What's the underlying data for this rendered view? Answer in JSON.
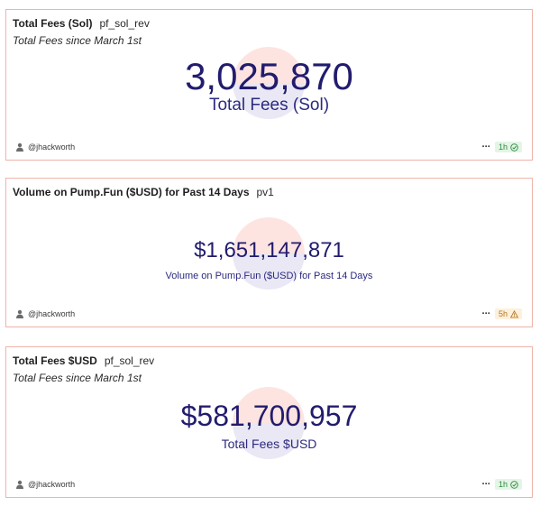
{
  "cards": [
    {
      "title": "Total Fees (Sol)",
      "query": "pf_sol_rev",
      "subtitle": "Total Fees since March 1st",
      "value": "3,025,870",
      "label": "Total Fees (Sol)",
      "author": "@jhackworth",
      "more": "···",
      "refresh": "1h",
      "status": "success"
    },
    {
      "title": "Volume on Pump.Fun ($USD) for Past 14 Days",
      "query": "pv1",
      "subtitle": "",
      "value": "$1,651,147,871",
      "label": "Volume on Pump.Fun ($USD) for Past 14 Days",
      "author": "@jhackworth",
      "more": "···",
      "refresh": "5h",
      "status": "warning"
    },
    {
      "title": "Total Fees $USD",
      "query": "pf_sol_rev",
      "subtitle": "Total Fees since March 1st",
      "value": "$581,700,957",
      "label": "Total Fees $USD",
      "author": "@jhackworth",
      "more": "···",
      "refresh": "1h",
      "status": "success"
    }
  ],
  "colors": {
    "border": "#f0b3a7",
    "value_text": "#221c6e",
    "success": "#2f8a3e",
    "warning": "#b7791f"
  },
  "icons": {
    "author": "user-avatar-icon",
    "success": "check-circle-icon",
    "warning": "warning-triangle-icon"
  }
}
